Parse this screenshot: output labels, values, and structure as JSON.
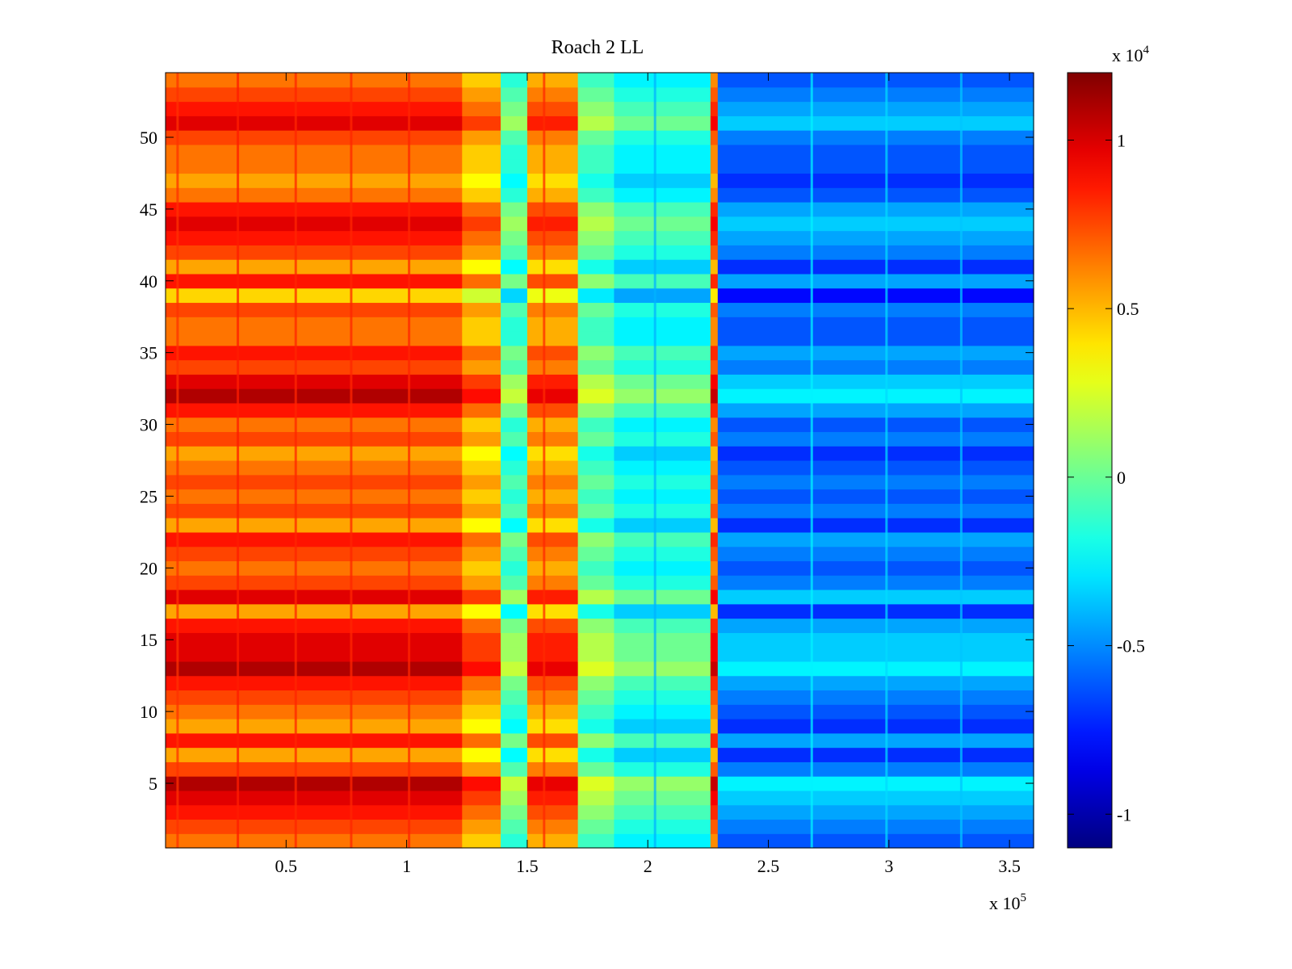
{
  "chart_data": {
    "type": "heatmap",
    "title": "Roach 2 LL",
    "xlabel": "",
    "ylabel": "",
    "x_multiplier": "x 10",
    "x_multiplier_exponent": "5",
    "xlim": [
      0,
      360000
    ],
    "ylim": [
      0.5,
      54.5
    ],
    "x_ticks": [
      50000,
      100000,
      150000,
      200000,
      250000,
      300000,
      350000
    ],
    "x_tick_labels": [
      "0.5",
      "1",
      "1.5",
      "2",
      "2.5",
      "3",
      "3.5"
    ],
    "y_ticks": [
      5,
      10,
      15,
      20,
      25,
      30,
      35,
      40,
      45,
      50
    ],
    "y_tick_labels": [
      "5",
      "10",
      "15",
      "20",
      "25",
      "30",
      "35",
      "40",
      "45",
      "50"
    ],
    "colormap": "jet",
    "clim": [
      -11000,
      12000
    ],
    "colorbar": {
      "multiplier": "x 10",
      "multiplier_exponent": "4",
      "ticks": [
        -10000,
        -5000,
        0,
        5000,
        10000
      ],
      "tick_labels": [
        "-1",
        "-0.5",
        "0",
        "0.5",
        "1"
      ]
    },
    "rows": 54,
    "column_segments": [
      {
        "x_start": 0,
        "x_end": 123000,
        "base_value": 6500
      },
      {
        "x_start": 123000,
        "x_end": 139000,
        "base_value": 4500
      },
      {
        "x_start": 139000,
        "x_end": 150000,
        "base_value": -1500
      },
      {
        "x_start": 150000,
        "x_end": 171000,
        "base_value": 5200
      },
      {
        "x_start": 171000,
        "x_end": 186000,
        "base_value": -1000
      },
      {
        "x_start": 186000,
        "x_end": 226000,
        "base_value": -2600
      },
      {
        "x_start": 226000,
        "x_end": 229000,
        "base_value": 6000
      },
      {
        "x_start": 229000,
        "x_end": 360000,
        "base_value": -6200
      }
    ],
    "row_offsets": [
      0,
      1,
      2,
      3,
      4,
      1,
      -1,
      2,
      -1,
      0,
      1,
      2,
      4,
      3,
      3,
      2,
      -1,
      3,
      1,
      0,
      1,
      2,
      -1,
      1,
      0,
      1,
      0,
      -1,
      1,
      0,
      2,
      4,
      3,
      1,
      2,
      0,
      0,
      1,
      -2,
      2,
      -1,
      1,
      2,
      3,
      2,
      0,
      -1,
      0,
      0,
      1,
      3,
      2,
      1,
      0
    ],
    "vertical_streaks": [
      {
        "x": 5000,
        "value_offset": 1500
      },
      {
        "x": 30000,
        "value_offset": 2000
      },
      {
        "x": 54000,
        "value_offset": 1800
      },
      {
        "x": 77000,
        "value_offset": 1800
      },
      {
        "x": 101000,
        "value_offset": 1800
      },
      {
        "x": 157000,
        "value_offset": 3000
      },
      {
        "x": 203000,
        "value_offset": -1500
      },
      {
        "x": 268000,
        "value_offset": 3500
      },
      {
        "x": 299000,
        "value_offset": 3000
      },
      {
        "x": 330000,
        "value_offset": 2500
      }
    ]
  }
}
